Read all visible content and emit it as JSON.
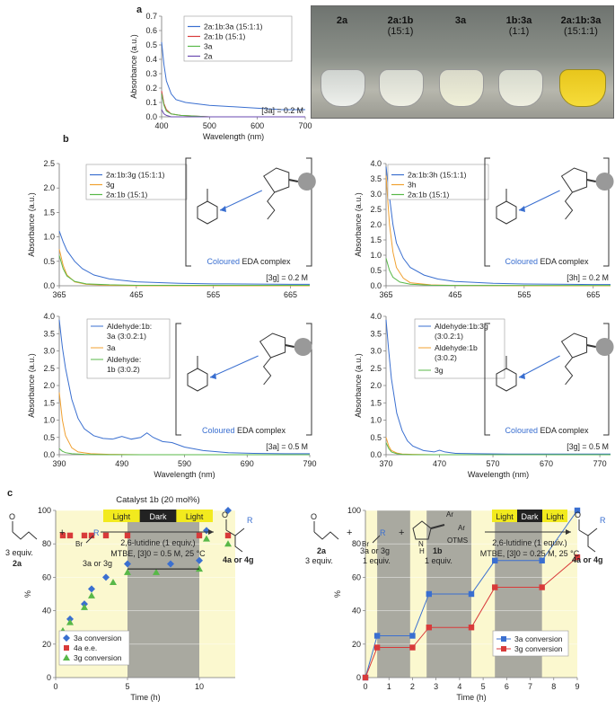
{
  "colors": {
    "blue": "#3a6fd0",
    "red": "#d83a3a",
    "orange": "#f0a030",
    "green": "#58b848",
    "purple": "#6a4ab0",
    "yellow_bg": "#fbf8cf",
    "gray_bg": "#a9a9a0",
    "ebar_yellow": "#f2ea1e",
    "ebar_dark": "#222222"
  },
  "panels": {
    "a": "a",
    "b": "b",
    "c": "c"
  },
  "photo": {
    "labels": [
      {
        "name": "2a",
        "ratio": ""
      },
      {
        "name": "2a:1b",
        "ratio": "(15:1)"
      },
      {
        "name": "3a",
        "ratio": ""
      },
      {
        "name": "1b:3a",
        "ratio": "(1:1)"
      },
      {
        "name": "2a:1b:3a",
        "ratio": "(15:1:1)"
      }
    ]
  },
  "edabox": {
    "coloured": "Coloured",
    "rest": " EDA complex"
  },
  "chart_data": [
    {
      "id": "a",
      "type": "line",
      "xlabel": "Wavelength (nm)",
      "ylabel": "Absorbance (a.u.)",
      "xlim": [
        400,
        700
      ],
      "ylim": [
        0,
        0.7
      ],
      "xticks": [
        400,
        500,
        600,
        700
      ],
      "yticks": [
        0,
        0.1,
        0.2,
        0.3,
        0.4,
        0.5,
        0.6,
        0.7
      ],
      "annotation": "[3a] = 0.2 M",
      "legend": [
        "2a:1b:3a (15:1:1)",
        "2a:1b (15:1)",
        "3a",
        "2a"
      ],
      "series": [
        {
          "name": "2a:1b:3a (15:1:1)",
          "color": "blue",
          "x": [
            400,
            405,
            410,
            420,
            430,
            450,
            500,
            550,
            600,
            650,
            700
          ],
          "y": [
            0.52,
            0.36,
            0.25,
            0.16,
            0.12,
            0.1,
            0.08,
            0.07,
            0.06,
            0.05,
            0.05
          ]
        },
        {
          "name": "2a:1b (15:1)",
          "color": "red",
          "x": [
            400,
            405,
            410,
            420,
            440,
            500,
            600,
            700
          ],
          "y": [
            0.18,
            0.09,
            0.05,
            0.02,
            0.01,
            0.0,
            0.0,
            0.0
          ]
        },
        {
          "name": "3a",
          "color": "green",
          "x": [
            400,
            405,
            410,
            420,
            440,
            500,
            600,
            700
          ],
          "y": [
            0.16,
            0.08,
            0.04,
            0.02,
            0.01,
            0.0,
            0.0,
            0.0
          ]
        },
        {
          "name": "2a",
          "color": "purple",
          "x": [
            400,
            405,
            410,
            420,
            440,
            500,
            600,
            700
          ],
          "y": [
            0.05,
            0.02,
            0.01,
            0.0,
            0.0,
            0.0,
            0.0,
            0.0
          ]
        }
      ]
    },
    {
      "id": "b1",
      "type": "line",
      "xlabel": "",
      "ylabel": "Absorbance (a.u.)",
      "xlim": [
        365,
        690
      ],
      "ylim": [
        0,
        2.5
      ],
      "xticks": [
        365,
        465,
        565,
        665
      ],
      "yticks": [
        0,
        0.5,
        1.0,
        1.5,
        2.0,
        2.5
      ],
      "annotation": "[3g] = 0.2 M",
      "legend": [
        "2a:1b:3g (15:1:1)",
        "3g",
        "2a:1b (15:1)"
      ],
      "series": [
        {
          "name": "2a:1b:3g (15:1:1)",
          "color": "blue",
          "x": [
            365,
            370,
            375,
            385,
            395,
            410,
            430,
            465,
            520,
            565,
            665,
            690
          ],
          "y": [
            1.12,
            0.9,
            0.72,
            0.5,
            0.35,
            0.22,
            0.14,
            0.08,
            0.05,
            0.04,
            0.03,
            0.03
          ]
        },
        {
          "name": "3g",
          "color": "orange",
          "x": [
            365,
            370,
            375,
            385,
            400,
            430,
            465,
            565,
            690
          ],
          "y": [
            0.75,
            0.42,
            0.22,
            0.08,
            0.03,
            0.01,
            0.0,
            0.0,
            0.0
          ]
        },
        {
          "name": "2a:1b (15:1)",
          "color": "green",
          "x": [
            365,
            370,
            375,
            385,
            400,
            430,
            465,
            565,
            690
          ],
          "y": [
            0.62,
            0.35,
            0.2,
            0.09,
            0.04,
            0.02,
            0.01,
            0.01,
            0.01
          ]
        }
      ]
    },
    {
      "id": "b2",
      "type": "line",
      "xlabel": "",
      "ylabel": "Absorbance (a.u.)",
      "xlim": [
        365,
        690
      ],
      "ylim": [
        0,
        4.0
      ],
      "xticks": [
        365,
        465,
        565,
        665
      ],
      "yticks": [
        0,
        0.5,
        1.0,
        1.5,
        2.0,
        2.5,
        3.0,
        3.5,
        4.0
      ],
      "annotation": "[3h] = 0.2 M",
      "legend": [
        "2a:1b:3h (15:1:1)",
        "3h",
        "2a:1b (15:1)"
      ],
      "series": [
        {
          "name": "2a:1b:3h (15:1:1)",
          "color": "blue",
          "x": [
            365,
            370,
            375,
            380,
            390,
            400,
            420,
            440,
            465,
            520,
            565,
            665,
            690
          ],
          "y": [
            3.9,
            2.9,
            2.0,
            1.4,
            0.9,
            0.6,
            0.35,
            0.22,
            0.14,
            0.08,
            0.06,
            0.04,
            0.04
          ]
        },
        {
          "name": "3h",
          "color": "orange",
          "x": [
            365,
            370,
            375,
            380,
            390,
            400,
            430,
            465,
            565,
            690
          ],
          "y": [
            3.6,
            2.0,
            1.1,
            0.6,
            0.25,
            0.1,
            0.03,
            0.01,
            0.0,
            0.0
          ]
        },
        {
          "name": "2a:1b (15:1)",
          "color": "green",
          "x": [
            365,
            370,
            375,
            385,
            400,
            430,
            465,
            565,
            690
          ],
          "y": [
            0.9,
            0.5,
            0.28,
            0.12,
            0.05,
            0.02,
            0.01,
            0.01,
            0.01
          ]
        }
      ]
    },
    {
      "id": "b3",
      "type": "line",
      "xlabel": "Wavelength (nm)",
      "ylabel": "Absorbance (a.u.)",
      "xlim": [
        390,
        790
      ],
      "ylim": [
        0,
        4.0
      ],
      "xticks": [
        390,
        490,
        590,
        690,
        790
      ],
      "yticks": [
        0,
        0.5,
        1.0,
        1.5,
        2.0,
        2.5,
        3.0,
        3.5,
        4.0
      ],
      "annotation": "[3a] = 0.5 M",
      "legend": [
        "Aldehyde:1b: 3a (3:0.2:1)",
        "3a",
        "Aldehyde: 1b (3:0.2)"
      ],
      "series": [
        {
          "name": "Aldehyde:1b: 3a (3:0.2:1)",
          "color": "blue",
          "x": [
            390,
            395,
            400,
            410,
            420,
            430,
            445,
            460,
            475,
            490,
            505,
            520,
            530,
            540,
            555,
            570,
            590,
            620,
            660,
            700,
            750,
            790
          ],
          "y": [
            3.9,
            3.1,
            2.5,
            1.6,
            1.05,
            0.75,
            0.55,
            0.47,
            0.45,
            0.53,
            0.45,
            0.5,
            0.63,
            0.5,
            0.38,
            0.35,
            0.22,
            0.12,
            0.06,
            0.04,
            0.03,
            0.03
          ]
        },
        {
          "name": "3a",
          "color": "orange",
          "x": [
            390,
            395,
            400,
            410,
            420,
            440,
            470,
            520,
            600,
            790
          ],
          "y": [
            1.8,
            1.0,
            0.55,
            0.2,
            0.08,
            0.03,
            0.01,
            0.0,
            0.0,
            0.0
          ]
        },
        {
          "name": "Aldehyde: 1b (3:0.2)",
          "color": "green",
          "x": [
            390,
            395,
            400,
            410,
            430,
            470,
            520,
            600,
            790
          ],
          "y": [
            0.18,
            0.1,
            0.06,
            0.03,
            0.01,
            0.0,
            0.0,
            0.0,
            0.0
          ]
        }
      ]
    },
    {
      "id": "b4",
      "type": "line",
      "xlabel": "Wavelength (nm)",
      "ylabel": "Absorbance (a.u.)",
      "xlim": [
        370,
        790
      ],
      "ylim": [
        0,
        4.0
      ],
      "xticks": [
        370,
        470,
        570,
        670,
        770
      ],
      "yticks": [
        0,
        0.5,
        1.0,
        1.5,
        2.0,
        2.5,
        3.0,
        3.5,
        4.0
      ],
      "annotation": "[3g] = 0.5 M",
      "legend": [
        "Aldehyde:1b:3g (3:0.2:1)",
        "Aldehyde:1b (3:0.2)",
        "3g"
      ],
      "series": [
        {
          "name": "Aldehyde:1b:3g (3:0.2:1)",
          "color": "blue",
          "x": [
            370,
            375,
            380,
            390,
            400,
            410,
            420,
            440,
            460,
            470,
            480,
            500,
            540,
            600,
            700,
            790
          ],
          "y": [
            3.9,
            3.0,
            2.2,
            1.2,
            0.7,
            0.4,
            0.25,
            0.12,
            0.08,
            0.13,
            0.08,
            0.04,
            0.03,
            0.02,
            0.02,
            0.02
          ]
        },
        {
          "name": "Aldehyde:1b (3:0.2)",
          "color": "orange",
          "x": [
            370,
            375,
            380,
            390,
            400,
            420,
            460,
            560,
            790
          ],
          "y": [
            0.5,
            0.25,
            0.12,
            0.05,
            0.02,
            0.01,
            0.0,
            0.0,
            0.0
          ]
        },
        {
          "name": "3g",
          "color": "green",
          "x": [
            370,
            375,
            380,
            390,
            400,
            420,
            460,
            560,
            790
          ],
          "y": [
            0.35,
            0.18,
            0.08,
            0.03,
            0.01,
            0.0,
            0.0,
            0.0,
            0.0
          ]
        }
      ]
    },
    {
      "id": "c1",
      "type": "scatter",
      "xlabel": "Time (h)",
      "ylabel": "%",
      "xlim": [
        0,
        12.5
      ],
      "ylim": [
        0,
        100
      ],
      "xticks": [
        0,
        5,
        10
      ],
      "yticks": [
        0,
        20,
        40,
        60,
        80,
        100
      ],
      "dark_intervals": [
        [
          5,
          10
        ]
      ],
      "legend": [
        "3a conversion",
        "4a e.e.",
        "3g conversion"
      ],
      "series": [
        {
          "name": "3a conversion",
          "color": "blue",
          "marker": "diamond",
          "x": [
            0.5,
            1,
            2,
            2.5,
            3.5,
            5,
            8,
            10,
            10.5,
            12
          ],
          "y": [
            25,
            35,
            44,
            53,
            60,
            68,
            68,
            70,
            88,
            100
          ]
        },
        {
          "name": "4a e.e.",
          "color": "red",
          "marker": "square",
          "x": [
            0.5,
            1,
            2,
            2.5,
            3.5,
            5,
            10,
            12
          ],
          "y": [
            85,
            85,
            85,
            85,
            85,
            85,
            85,
            85
          ]
        },
        {
          "name": "3g conversion",
          "color": "green",
          "marker": "triangle",
          "x": [
            0.5,
            1,
            2,
            2.5,
            4,
            5,
            7,
            10,
            10.5,
            12
          ],
          "y": [
            28,
            33,
            42,
            49,
            57,
            63,
            63,
            65,
            83,
            80
          ]
        }
      ]
    },
    {
      "id": "c2",
      "type": "line",
      "xlabel": "Time (h)",
      "ylabel": "%",
      "xlim": [
        0,
        9
      ],
      "ylim": [
        0,
        100
      ],
      "xticks": [
        0,
        1,
        2,
        3,
        4,
        5,
        6,
        7,
        8,
        9
      ],
      "yticks": [
        0,
        20,
        40,
        60,
        80,
        100
      ],
      "dark_intervals": [
        [
          0.5,
          1.9
        ],
        [
          2.6,
          4.5
        ],
        [
          5.5,
          7.5
        ]
      ],
      "legend": [
        "3a conversion",
        "3g conversion"
      ],
      "series": [
        {
          "name": "3a conversion",
          "color": "blue",
          "marker": "square",
          "x": [
            0,
            0.5,
            2,
            2.7,
            4.5,
            5.5,
            7.5,
            9
          ],
          "y": [
            0,
            25,
            25,
            50,
            50,
            70,
            70,
            100
          ]
        },
        {
          "name": "3g conversion",
          "color": "red",
          "marker": "square",
          "x": [
            0,
            0.5,
            2,
            2.7,
            4.5,
            5.5,
            7.5,
            9
          ],
          "y": [
            0,
            18,
            18,
            30,
            30,
            54,
            54,
            72
          ]
        }
      ]
    }
  ],
  "schemes": {
    "left": {
      "catalyst": "Catalyst 1b (20 mol%)",
      "bar": [
        "Light",
        "Dark",
        "Light"
      ],
      "below1": "2,6-lutidine (1 equiv.)",
      "below2": "MTBE, [3]0 = 0.5 M, 25 °C",
      "r_equiv": "3 equiv.",
      "r_id": "2a",
      "plus": "+",
      "reagent": "3a or 3g",
      "product": "4a or 4g",
      "R": "R",
      "Br": "Br",
      "O": "O"
    },
    "right": {
      "bar": [
        "Light",
        "Dark",
        "Light"
      ],
      "below1": "2,6-lutidine (1 equiv.)",
      "below2": "MTBE, [3]0 = 0.25 M, 25 °C",
      "r_id": "2a",
      "r_equiv": "3 equiv.",
      "plus": "+",
      "reagent": "3a or 3g",
      "reagent_equiv": "1 equiv.",
      "cat_id": "1b",
      "cat_equiv": "1 equiv.",
      "Ar": "Ar",
      "OTMS": "OTMS",
      "NH": "N\nH",
      "product": "4a or 4g",
      "R": "R",
      "Br": "Br",
      "O": "O"
    }
  }
}
